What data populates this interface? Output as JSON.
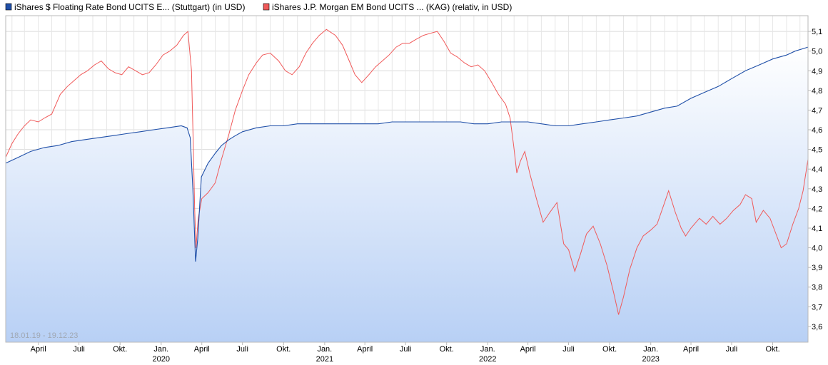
{
  "chart_data": {
    "type": "line",
    "date_range_label": "18.01.19 - 19.12.23",
    "grid": true,
    "legend_position": "top-left",
    "y_axis_position": "right",
    "ylim": [
      3.52,
      5.18
    ],
    "xlim": [
      "2019-01-18",
      "2023-12-19"
    ],
    "y_ticks": [
      "3,6",
      "3,7",
      "3,8",
      "3,9",
      "4,0",
      "4,1",
      "4,2",
      "4,3",
      "4,4",
      "4,5",
      "4,6",
      "4,7",
      "4,8",
      "4,9",
      "5,0",
      "5,1"
    ],
    "x_ticks": [
      {
        "date": "2019-04-01",
        "label": "April",
        "year": ""
      },
      {
        "date": "2019-07-01",
        "label": "Juli",
        "year": ""
      },
      {
        "date": "2019-10-01",
        "label": "Okt.",
        "year": ""
      },
      {
        "date": "2020-01-01",
        "label": "Jan.",
        "year": "2020"
      },
      {
        "date": "2020-04-01",
        "label": "April",
        "year": ""
      },
      {
        "date": "2020-07-01",
        "label": "Juli",
        "year": ""
      },
      {
        "date": "2020-10-01",
        "label": "Okt.",
        "year": ""
      },
      {
        "date": "2021-01-01",
        "label": "Jan.",
        "year": "2021"
      },
      {
        "date": "2021-04-01",
        "label": "April",
        "year": ""
      },
      {
        "date": "2021-07-01",
        "label": "Juli",
        "year": ""
      },
      {
        "date": "2021-10-01",
        "label": "Okt.",
        "year": ""
      },
      {
        "date": "2022-01-01",
        "label": "Jan.",
        "year": "2022"
      },
      {
        "date": "2022-04-01",
        "label": "April",
        "year": ""
      },
      {
        "date": "2022-07-01",
        "label": "Juli",
        "year": ""
      },
      {
        "date": "2022-10-01",
        "label": "Okt.",
        "year": ""
      },
      {
        "date": "2023-01-01",
        "label": "Jan.",
        "year": "2023"
      },
      {
        "date": "2023-04-01",
        "label": "April",
        "year": ""
      },
      {
        "date": "2023-07-01",
        "label": "Juli",
        "year": ""
      },
      {
        "date": "2023-10-01",
        "label": "Okt.",
        "year": ""
      }
    ],
    "series": [
      {
        "name": "iShares $ Floating Rate Bond UCITS E... (Stuttgart) (in USD)",
        "color": "#1f4fa8",
        "area_fill": true,
        "points": [
          [
            "2019-01-18",
            4.43
          ],
          [
            "2019-02-15",
            4.46
          ],
          [
            "2019-03-15",
            4.49
          ],
          [
            "2019-04-15",
            4.51
          ],
          [
            "2019-05-15",
            4.52
          ],
          [
            "2019-06-15",
            4.54
          ],
          [
            "2019-07-15",
            4.55
          ],
          [
            "2019-08-15",
            4.56
          ],
          [
            "2019-09-15",
            4.57
          ],
          [
            "2019-10-15",
            4.58
          ],
          [
            "2019-11-15",
            4.59
          ],
          [
            "2019-12-15",
            4.6
          ],
          [
            "2020-01-15",
            4.61
          ],
          [
            "2020-02-15",
            4.62
          ],
          [
            "2020-02-28",
            4.61
          ],
          [
            "2020-03-06",
            4.56
          ],
          [
            "2020-03-12",
            4.3
          ],
          [
            "2020-03-18",
            3.93
          ],
          [
            "2020-03-23",
            4.05
          ],
          [
            "2020-03-31",
            4.36
          ],
          [
            "2020-04-15",
            4.43
          ],
          [
            "2020-05-01",
            4.48
          ],
          [
            "2020-05-15",
            4.52
          ],
          [
            "2020-06-01",
            4.55
          ],
          [
            "2020-06-15",
            4.57
          ],
          [
            "2020-07-01",
            4.59
          ],
          [
            "2020-08-01",
            4.61
          ],
          [
            "2020-09-01",
            4.62
          ],
          [
            "2020-10-01",
            4.62
          ],
          [
            "2020-11-01",
            4.63
          ],
          [
            "2020-12-01",
            4.63
          ],
          [
            "2021-01-01",
            4.63
          ],
          [
            "2021-02-01",
            4.63
          ],
          [
            "2021-03-01",
            4.63
          ],
          [
            "2021-04-01",
            4.63
          ],
          [
            "2021-05-01",
            4.63
          ],
          [
            "2021-06-01",
            4.64
          ],
          [
            "2021-07-01",
            4.64
          ],
          [
            "2021-08-01",
            4.64
          ],
          [
            "2021-09-01",
            4.64
          ],
          [
            "2021-10-01",
            4.64
          ],
          [
            "2021-11-01",
            4.64
          ],
          [
            "2021-12-01",
            4.63
          ],
          [
            "2022-01-01",
            4.63
          ],
          [
            "2022-02-01",
            4.64
          ],
          [
            "2022-03-01",
            4.64
          ],
          [
            "2022-04-01",
            4.64
          ],
          [
            "2022-05-01",
            4.63
          ],
          [
            "2022-06-01",
            4.62
          ],
          [
            "2022-07-01",
            4.62
          ],
          [
            "2022-08-01",
            4.63
          ],
          [
            "2022-09-01",
            4.64
          ],
          [
            "2022-10-01",
            4.65
          ],
          [
            "2022-11-01",
            4.66
          ],
          [
            "2022-12-01",
            4.67
          ],
          [
            "2023-01-01",
            4.69
          ],
          [
            "2023-02-01",
            4.71
          ],
          [
            "2023-03-01",
            4.72
          ],
          [
            "2023-04-01",
            4.76
          ],
          [
            "2023-05-01",
            4.79
          ],
          [
            "2023-06-01",
            4.82
          ],
          [
            "2023-07-01",
            4.86
          ],
          [
            "2023-08-01",
            4.9
          ],
          [
            "2023-09-01",
            4.93
          ],
          [
            "2023-10-01",
            4.96
          ],
          [
            "2023-11-01",
            4.98
          ],
          [
            "2023-11-20",
            5.0
          ],
          [
            "2023-12-19",
            5.02
          ]
        ]
      },
      {
        "name": "iShares J.P. Morgan EM Bond UCITS ... (KAG) (relativ, in USD)",
        "color": "#f05a5a",
        "area_fill": false,
        "points": [
          [
            "2019-01-18",
            4.46
          ],
          [
            "2019-02-01",
            4.53
          ],
          [
            "2019-02-15",
            4.58
          ],
          [
            "2019-03-01",
            4.62
          ],
          [
            "2019-03-15",
            4.65
          ],
          [
            "2019-04-01",
            4.64
          ],
          [
            "2019-04-15",
            4.66
          ],
          [
            "2019-05-01",
            4.68
          ],
          [
            "2019-05-20",
            4.78
          ],
          [
            "2019-06-05",
            4.82
          ],
          [
            "2019-06-20",
            4.85
          ],
          [
            "2019-07-05",
            4.88
          ],
          [
            "2019-07-20",
            4.9
          ],
          [
            "2019-08-05",
            4.93
          ],
          [
            "2019-08-20",
            4.95
          ],
          [
            "2019-09-05",
            4.91
          ],
          [
            "2019-09-20",
            4.89
          ],
          [
            "2019-10-05",
            4.88
          ],
          [
            "2019-10-20",
            4.92
          ],
          [
            "2019-11-05",
            4.9
          ],
          [
            "2019-11-20",
            4.88
          ],
          [
            "2019-12-05",
            4.89
          ],
          [
            "2019-12-20",
            4.93
          ],
          [
            "2020-01-05",
            4.98
          ],
          [
            "2020-01-20",
            5.0
          ],
          [
            "2020-02-05",
            5.03
          ],
          [
            "2020-02-20",
            5.08
          ],
          [
            "2020-03-01",
            5.1
          ],
          [
            "2020-03-09",
            4.9
          ],
          [
            "2020-03-13",
            4.5
          ],
          [
            "2020-03-16",
            4.2
          ],
          [
            "2020-03-19",
            4.0
          ],
          [
            "2020-03-24",
            4.15
          ],
          [
            "2020-04-01",
            4.25
          ],
          [
            "2020-04-15",
            4.28
          ],
          [
            "2020-05-01",
            4.33
          ],
          [
            "2020-05-15",
            4.45
          ],
          [
            "2020-06-01",
            4.58
          ],
          [
            "2020-06-15",
            4.7
          ],
          [
            "2020-07-01",
            4.8
          ],
          [
            "2020-07-15",
            4.88
          ],
          [
            "2020-08-01",
            4.94
          ],
          [
            "2020-08-15",
            4.98
          ],
          [
            "2020-09-01",
            4.99
          ],
          [
            "2020-09-20",
            4.95
          ],
          [
            "2020-10-05",
            4.9
          ],
          [
            "2020-10-20",
            4.88
          ],
          [
            "2020-11-05",
            4.92
          ],
          [
            "2020-11-20",
            4.99
          ],
          [
            "2020-12-05",
            5.04
          ],
          [
            "2020-12-20",
            5.08
          ],
          [
            "2021-01-05",
            5.11
          ],
          [
            "2021-01-25",
            5.08
          ],
          [
            "2021-02-10",
            5.03
          ],
          [
            "2021-02-25",
            4.95
          ],
          [
            "2021-03-10",
            4.88
          ],
          [
            "2021-03-25",
            4.84
          ],
          [
            "2021-04-10",
            4.88
          ],
          [
            "2021-04-25",
            4.92
          ],
          [
            "2021-05-10",
            4.95
          ],
          [
            "2021-05-25",
            4.98
          ],
          [
            "2021-06-10",
            5.02
          ],
          [
            "2021-06-25",
            5.04
          ],
          [
            "2021-07-10",
            5.04
          ],
          [
            "2021-07-25",
            5.06
          ],
          [
            "2021-08-10",
            5.08
          ],
          [
            "2021-08-25",
            5.09
          ],
          [
            "2021-09-10",
            5.1
          ],
          [
            "2021-09-25",
            5.05
          ],
          [
            "2021-10-10",
            4.99
          ],
          [
            "2021-10-25",
            4.97
          ],
          [
            "2021-11-10",
            4.94
          ],
          [
            "2021-11-25",
            4.92
          ],
          [
            "2021-12-10",
            4.93
          ],
          [
            "2021-12-25",
            4.9
          ],
          [
            "2022-01-10",
            4.84
          ],
          [
            "2022-01-25",
            4.78
          ],
          [
            "2022-02-10",
            4.73
          ],
          [
            "2022-02-20",
            4.66
          ],
          [
            "2022-02-28",
            4.52
          ],
          [
            "2022-03-07",
            4.38
          ],
          [
            "2022-03-15",
            4.44
          ],
          [
            "2022-03-25",
            4.49
          ],
          [
            "2022-04-05",
            4.38
          ],
          [
            "2022-04-20",
            4.25
          ],
          [
            "2022-05-05",
            4.13
          ],
          [
            "2022-05-20",
            4.18
          ],
          [
            "2022-06-05",
            4.23
          ],
          [
            "2022-06-20",
            4.02
          ],
          [
            "2022-07-01",
            3.99
          ],
          [
            "2022-07-15",
            3.88
          ],
          [
            "2022-07-28",
            3.97
          ],
          [
            "2022-08-10",
            4.07
          ],
          [
            "2022-08-25",
            4.11
          ],
          [
            "2022-09-10",
            4.02
          ],
          [
            "2022-09-25",
            3.91
          ],
          [
            "2022-10-10",
            3.77
          ],
          [
            "2022-10-21",
            3.66
          ],
          [
            "2022-11-01",
            3.75
          ],
          [
            "2022-11-15",
            3.89
          ],
          [
            "2022-12-01",
            4.0
          ],
          [
            "2022-12-15",
            4.06
          ],
          [
            "2023-01-01",
            4.09
          ],
          [
            "2023-01-15",
            4.12
          ],
          [
            "2023-02-01",
            4.23
          ],
          [
            "2023-02-10",
            4.29
          ],
          [
            "2023-02-25",
            4.18
          ],
          [
            "2023-03-10",
            4.1
          ],
          [
            "2023-03-20",
            4.06
          ],
          [
            "2023-04-01",
            4.1
          ],
          [
            "2023-04-20",
            4.15
          ],
          [
            "2023-05-05",
            4.12
          ],
          [
            "2023-05-20",
            4.16
          ],
          [
            "2023-06-05",
            4.12
          ],
          [
            "2023-06-20",
            4.15
          ],
          [
            "2023-07-05",
            4.19
          ],
          [
            "2023-07-20",
            4.22
          ],
          [
            "2023-08-01",
            4.27
          ],
          [
            "2023-08-15",
            4.25
          ],
          [
            "2023-08-25",
            4.13
          ],
          [
            "2023-09-10",
            4.19
          ],
          [
            "2023-09-25",
            4.15
          ],
          [
            "2023-10-10",
            4.06
          ],
          [
            "2023-10-20",
            4.0
          ],
          [
            "2023-11-01",
            4.02
          ],
          [
            "2023-11-15",
            4.12
          ],
          [
            "2023-11-28",
            4.2
          ],
          [
            "2023-12-08",
            4.29
          ],
          [
            "2023-12-19",
            4.45
          ]
        ]
      }
    ]
  }
}
